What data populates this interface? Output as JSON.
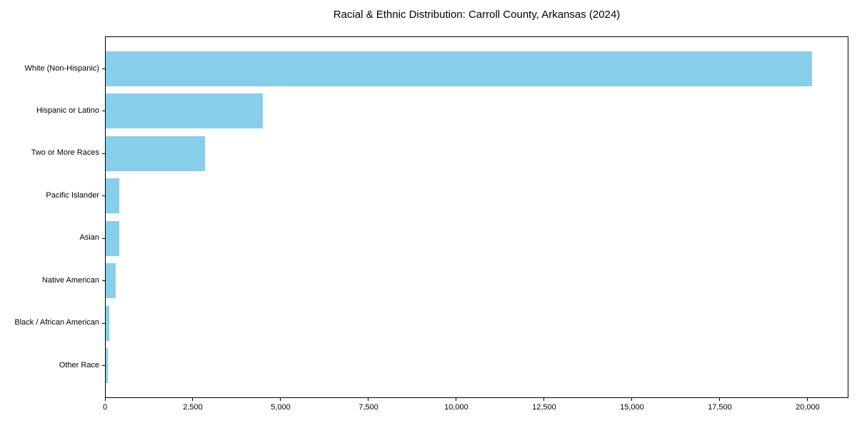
{
  "chart_data": {
    "type": "bar",
    "orientation": "horizontal",
    "title": "Racial & Ethnic Distribution: Carroll County, Arkansas (2024)",
    "categories": [
      "White (Non-Hispanic)",
      "Hispanic or Latino",
      "Two or More Races",
      "Pacific Islander",
      "Asian",
      "Native American",
      "Black / African American",
      "Other Race"
    ],
    "values": [
      20100,
      4470,
      2830,
      380,
      395,
      290,
      95,
      55
    ],
    "xlabel": "",
    "ylabel": "",
    "xlim": [
      0,
      21160
    ],
    "x_ticks": [
      0,
      2500,
      5000,
      7500,
      10000,
      12500,
      15000,
      17500,
      20000
    ],
    "x_tick_labels": [
      "0",
      "2,500",
      "5,000",
      "7,500",
      "10,000",
      "12,500",
      "15,000",
      "17,500",
      "20,000"
    ],
    "bar_color": "#87CEEB",
    "axis_color": "#000000",
    "grid": false,
    "legend": null
  }
}
